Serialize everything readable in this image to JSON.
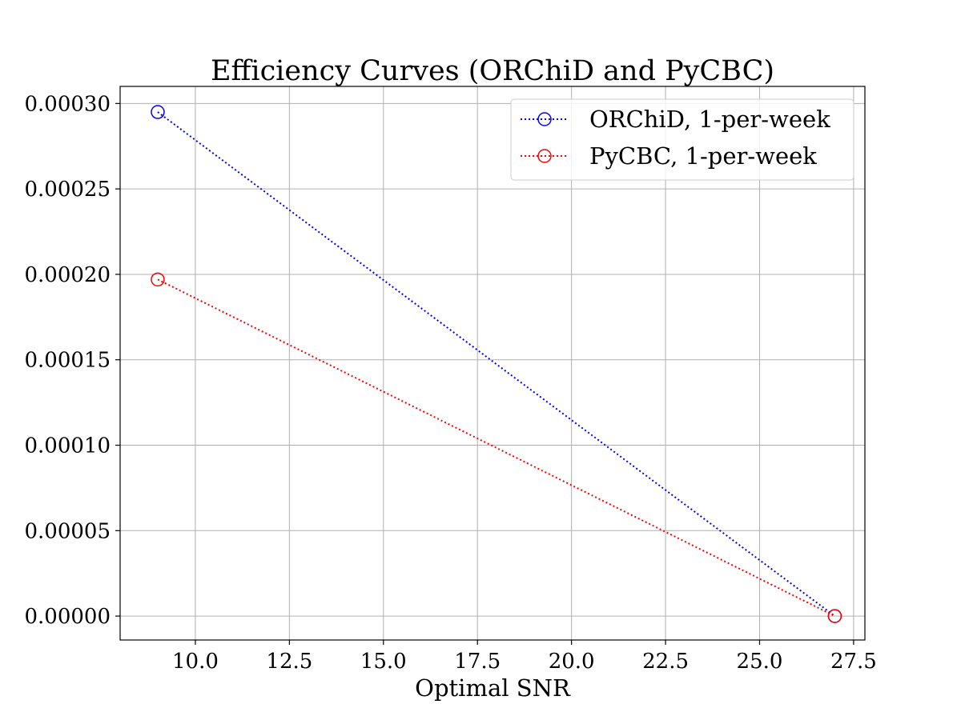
{
  "chart_data": {
    "type": "line",
    "title": "Efficiency Curves (ORChiD and PyCBC)",
    "xlabel": "Optimal SNR",
    "ylabel": "",
    "xlim": [
      8.0,
      27.8
    ],
    "ylim": [
      -1.4e-05,
      0.00031
    ],
    "xticks": [
      10.0,
      12.5,
      15.0,
      17.5,
      20.0,
      22.5,
      25.0,
      27.5
    ],
    "xtick_labels": [
      "10.0",
      "12.5",
      "15.0",
      "17.5",
      "20.0",
      "22.5",
      "25.0",
      "27.5"
    ],
    "yticks": [
      0.0,
      5e-05,
      0.0001,
      0.00015,
      0.0002,
      0.00025,
      0.0003
    ],
    "ytick_labels": [
      "0.00000",
      "0.00005",
      "0.00010",
      "0.00015",
      "0.00020",
      "0.00025",
      "0.00030"
    ],
    "grid": true,
    "legend_position": "top-right",
    "series": [
      {
        "name": "ORChiD, 1-per-week",
        "color": "#0000ff",
        "linestyle": "dotted",
        "marker": "open-circle",
        "x": [
          9.0,
          27.0
        ],
        "y": [
          0.000295,
          0.0
        ]
      },
      {
        "name": "PyCBC, 1-per-week",
        "color": "#ff0000",
        "linestyle": "dotted",
        "marker": "open-circle",
        "x": [
          9.0,
          27.0
        ],
        "y": [
          0.000197,
          0.0
        ]
      }
    ]
  }
}
